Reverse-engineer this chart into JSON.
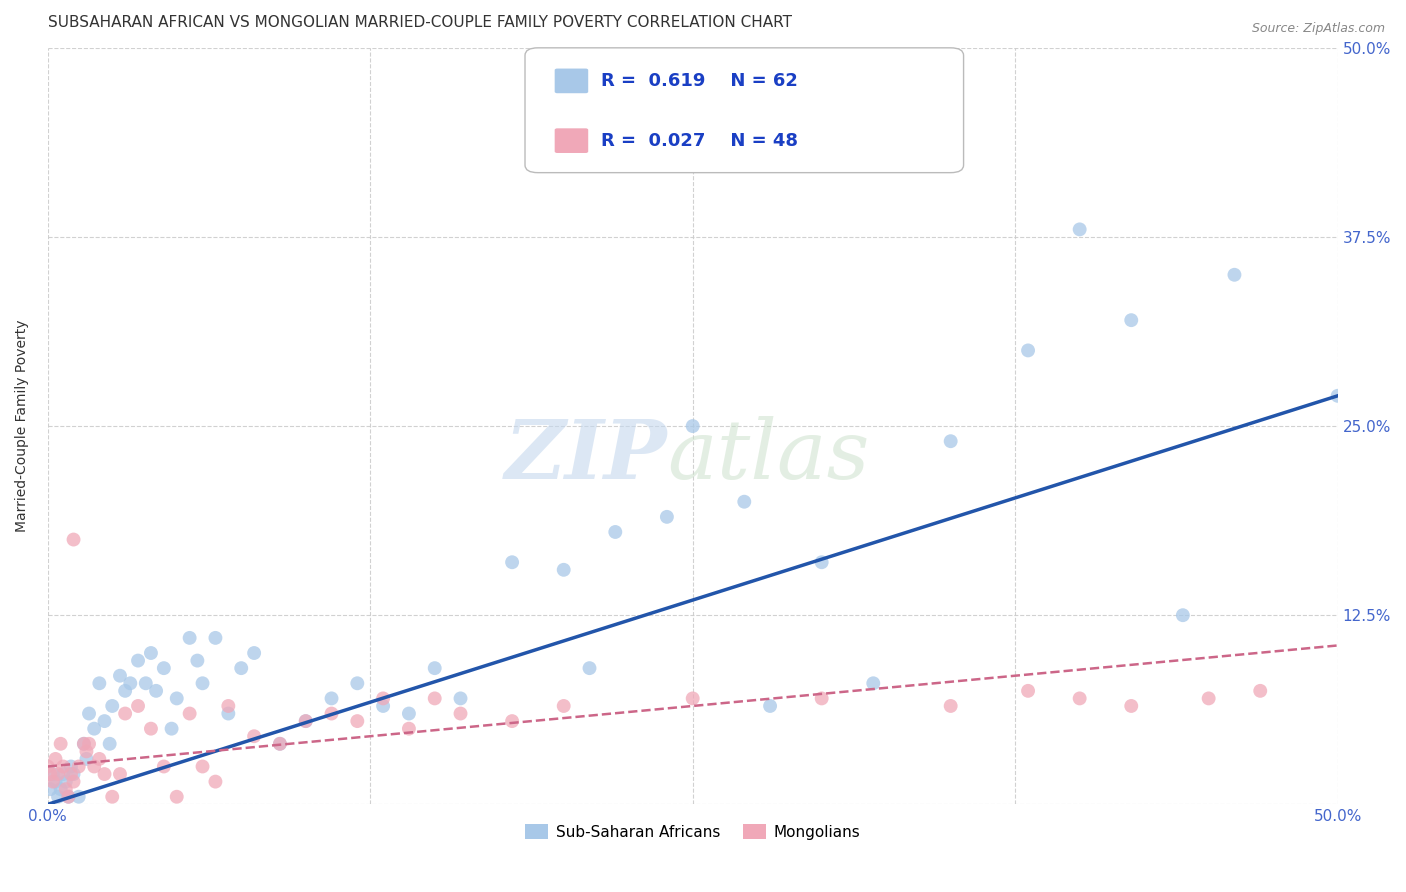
{
  "title": "SUBSAHARAN AFRICAN VS MONGOLIAN MARRIED-COUPLE FAMILY POVERTY CORRELATION CHART",
  "source": "Source: ZipAtlas.com",
  "ylabel": "Married-Couple Family Poverty",
  "xlim": [
    0,
    0.5
  ],
  "ylim": [
    0,
    0.5
  ],
  "xticks": [
    0.0,
    0.125,
    0.25,
    0.375,
    0.5
  ],
  "xticklabels": [
    "0.0%",
    "",
    "",
    "",
    "50.0%"
  ],
  "yticks": [
    0.0,
    0.125,
    0.25,
    0.375,
    0.5
  ],
  "yticklabels_right": [
    "",
    "12.5%",
    "25.0%",
    "37.5%",
    "50.0%"
  ],
  "blue_R": "0.619",
  "blue_N": "62",
  "pink_R": "0.027",
  "pink_N": "48",
  "legend_label_blue": "Sub-Saharan Africans",
  "legend_label_pink": "Mongolians",
  "blue_color": "#a8c8e8",
  "pink_color": "#f0a8b8",
  "blue_line_color": "#2255aa",
  "pink_line_color": "#cc6688",
  "blue_scatter_x": [
    0.001,
    0.002,
    0.003,
    0.004,
    0.005,
    0.006,
    0.007,
    0.008,
    0.009,
    0.01,
    0.012,
    0.014,
    0.015,
    0.016,
    0.018,
    0.02,
    0.022,
    0.024,
    0.025,
    0.028,
    0.03,
    0.032,
    0.035,
    0.038,
    0.04,
    0.042,
    0.045,
    0.048,
    0.05,
    0.055,
    0.058,
    0.06,
    0.065,
    0.07,
    0.075,
    0.08,
    0.09,
    0.1,
    0.11,
    0.12,
    0.13,
    0.14,
    0.15,
    0.16,
    0.18,
    0.2,
    0.21,
    0.22,
    0.24,
    0.25,
    0.27,
    0.28,
    0.3,
    0.32,
    0.33,
    0.35,
    0.38,
    0.4,
    0.42,
    0.44,
    0.46,
    0.5
  ],
  "blue_scatter_y": [
    0.01,
    0.02,
    0.015,
    0.005,
    0.01,
    0.02,
    0.015,
    0.005,
    0.025,
    0.02,
    0.005,
    0.04,
    0.03,
    0.06,
    0.05,
    0.08,
    0.055,
    0.04,
    0.065,
    0.085,
    0.075,
    0.08,
    0.095,
    0.08,
    0.1,
    0.075,
    0.09,
    0.05,
    0.07,
    0.11,
    0.095,
    0.08,
    0.11,
    0.06,
    0.09,
    0.1,
    0.04,
    0.055,
    0.07,
    0.08,
    0.065,
    0.06,
    0.09,
    0.07,
    0.16,
    0.155,
    0.09,
    0.18,
    0.19,
    0.25,
    0.2,
    0.065,
    0.16,
    0.08,
    0.43,
    0.24,
    0.3,
    0.38,
    0.32,
    0.125,
    0.35,
    0.27
  ],
  "pink_scatter_x": [
    0.0,
    0.001,
    0.002,
    0.003,
    0.004,
    0.005,
    0.006,
    0.007,
    0.008,
    0.009,
    0.01,
    0.012,
    0.014,
    0.015,
    0.016,
    0.018,
    0.02,
    0.022,
    0.025,
    0.028,
    0.03,
    0.035,
    0.04,
    0.045,
    0.05,
    0.055,
    0.06,
    0.065,
    0.07,
    0.08,
    0.09,
    0.1,
    0.11,
    0.12,
    0.13,
    0.14,
    0.15,
    0.16,
    0.18,
    0.2,
    0.25,
    0.3,
    0.35,
    0.38,
    0.4,
    0.42,
    0.45,
    0.47
  ],
  "pink_scatter_y": [
    0.025,
    0.02,
    0.015,
    0.03,
    0.02,
    0.04,
    0.025,
    0.01,
    0.005,
    0.02,
    0.015,
    0.025,
    0.04,
    0.035,
    0.04,
    0.025,
    0.03,
    0.02,
    0.005,
    0.02,
    0.06,
    0.065,
    0.05,
    0.025,
    0.005,
    0.06,
    0.025,
    0.015,
    0.065,
    0.045,
    0.04,
    0.055,
    0.06,
    0.055,
    0.07,
    0.05,
    0.07,
    0.06,
    0.055,
    0.065,
    0.07,
    0.07,
    0.065,
    0.075,
    0.07,
    0.065,
    0.07,
    0.075
  ],
  "pink_outlier_x": [
    0.01
  ],
  "pink_outlier_y": [
    0.175
  ],
  "blue_line_x": [
    0.0,
    0.5
  ],
  "blue_line_y": [
    0.0,
    0.27
  ],
  "pink_line_x": [
    0.0,
    0.5
  ],
  "pink_line_y": [
    0.025,
    0.105
  ],
  "bg_color": "#ffffff",
  "grid_color": "#cccccc",
  "title_fontsize": 11,
  "axis_fontsize": 10,
  "tick_fontsize": 11,
  "marker_size": 100
}
